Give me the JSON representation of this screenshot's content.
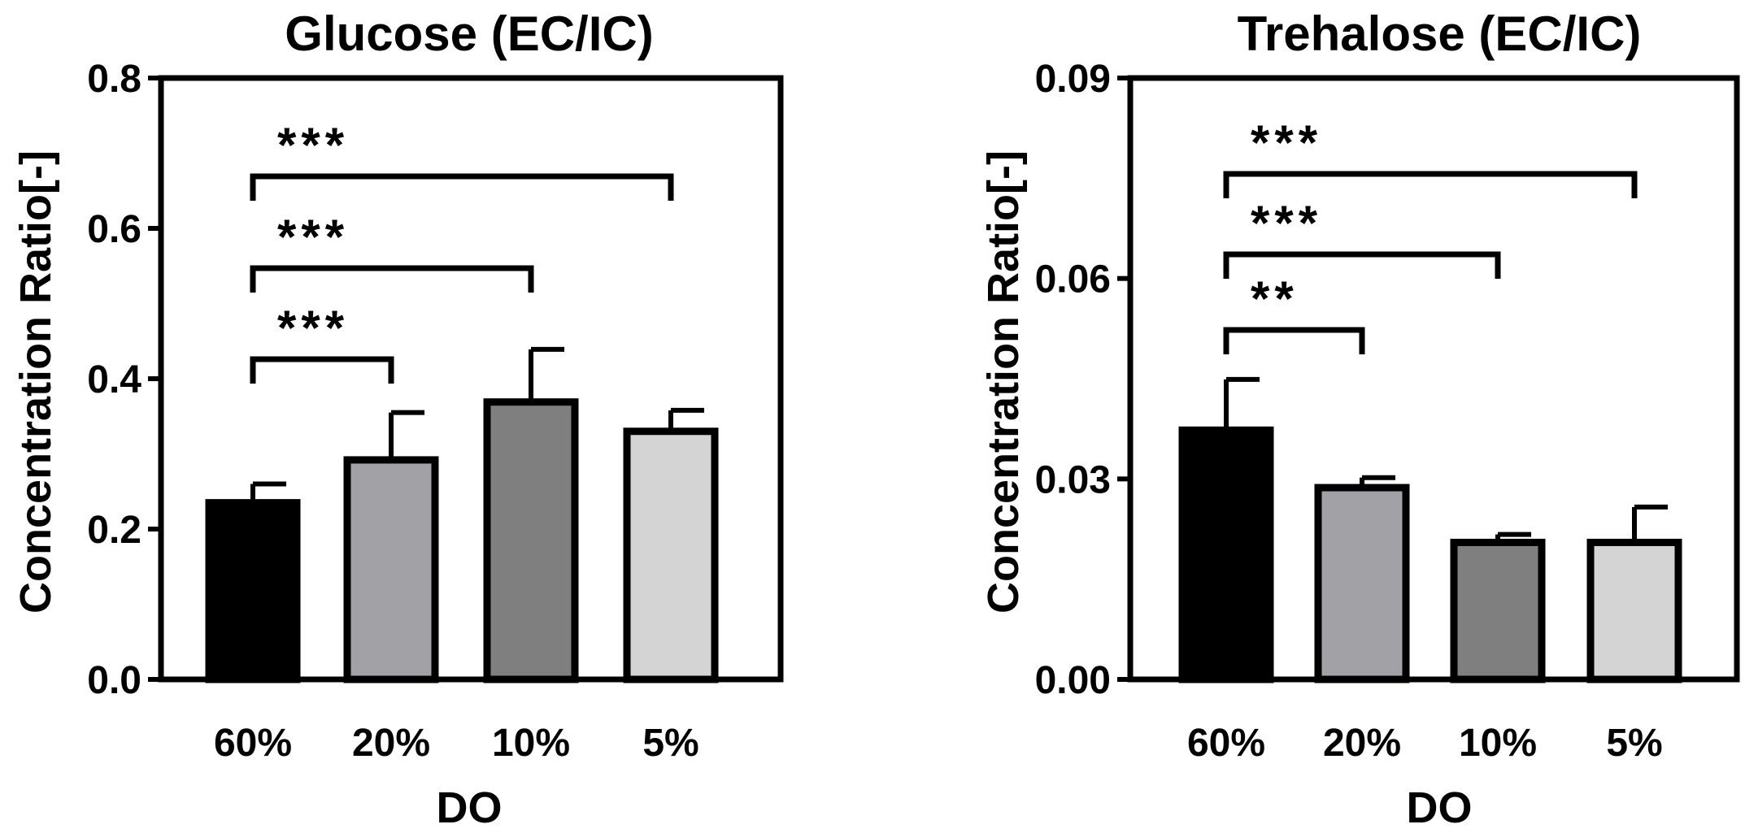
{
  "chart_data": [
    {
      "type": "bar",
      "title": "Glucose (EC/IC)",
      "xlabel": "DO",
      "ylabel": "Concentration Ratio[-]",
      "categories": [
        "60%",
        "20%",
        "10%",
        "5%"
      ],
      "values": [
        0.235,
        0.292,
        0.369,
        0.33
      ],
      "errors": [
        0.025,
        0.063,
        0.07,
        0.028
      ],
      "colors": [
        "#000000",
        "#a1a1a6",
        "#7f7f7f",
        "#d4d4d4"
      ],
      "ylim": [
        0,
        0.8
      ],
      "yticks": [
        "0.0",
        "0.2",
        "0.4",
        "0.6",
        "0.8"
      ],
      "significance": [
        {
          "from": 0,
          "to": 1,
          "label": "***"
        },
        {
          "from": 0,
          "to": 2,
          "label": "***"
        },
        {
          "from": 0,
          "to": 3,
          "label": "***"
        }
      ]
    },
    {
      "type": "bar",
      "title": "Trehalose (EC/IC)",
      "xlabel": "DO",
      "ylabel": "Concentration Ratio[-]",
      "categories": [
        "60%",
        "20%",
        "10%",
        "5%"
      ],
      "values": [
        0.0373,
        0.0287,
        0.0205,
        0.0205
      ],
      "errors": [
        0.0076,
        0.0015,
        0.0012,
        0.0053
      ],
      "colors": [
        "#000000",
        "#a1a1a6",
        "#7f7f7f",
        "#d4d4d4"
      ],
      "ylim": [
        0,
        0.09
      ],
      "yticks": [
        "0.00",
        "0.03",
        "0.06",
        "0.09"
      ],
      "significance": [
        {
          "from": 0,
          "to": 1,
          "label": "**"
        },
        {
          "from": 0,
          "to": 2,
          "label": "***"
        },
        {
          "from": 0,
          "to": 3,
          "label": "***"
        }
      ]
    }
  ]
}
